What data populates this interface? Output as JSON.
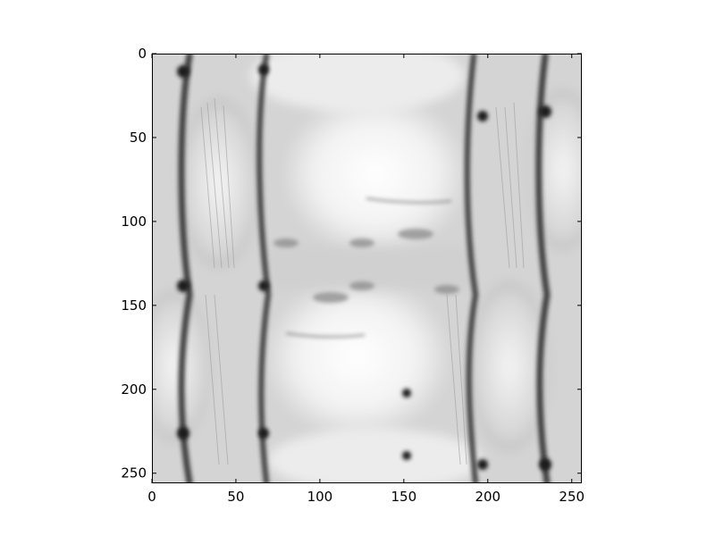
{
  "chart_data": {
    "type": "heatmap",
    "colormap": "gray",
    "title": "",
    "xlabel": "",
    "ylabel": "",
    "xlim": [
      0,
      256
    ],
    "ylim": [
      256,
      0
    ],
    "y_axis_inverted": true,
    "grid": false,
    "x_ticks": [
      0,
      50,
      100,
      150,
      200,
      250
    ],
    "y_ticks": [
      0,
      50,
      100,
      150,
      200,
      250
    ],
    "x_tick_labels": [
      "0",
      "50",
      "100",
      "150",
      "200",
      "250"
    ],
    "y_tick_labels": [
      "0",
      "50",
      "100",
      "150",
      "200",
      "250"
    ],
    "image_description": "grayscale image showing a face-like pattern tiled and mirrored in a 2x2 arrangement, with bright central regions and dark curved vertical bands"
  },
  "colors": {
    "background": "#ffffff",
    "axes_edge": "#000000",
    "bright": "#ffffff",
    "mid": "#cfcfcf",
    "dark": "#3a3a3a"
  }
}
